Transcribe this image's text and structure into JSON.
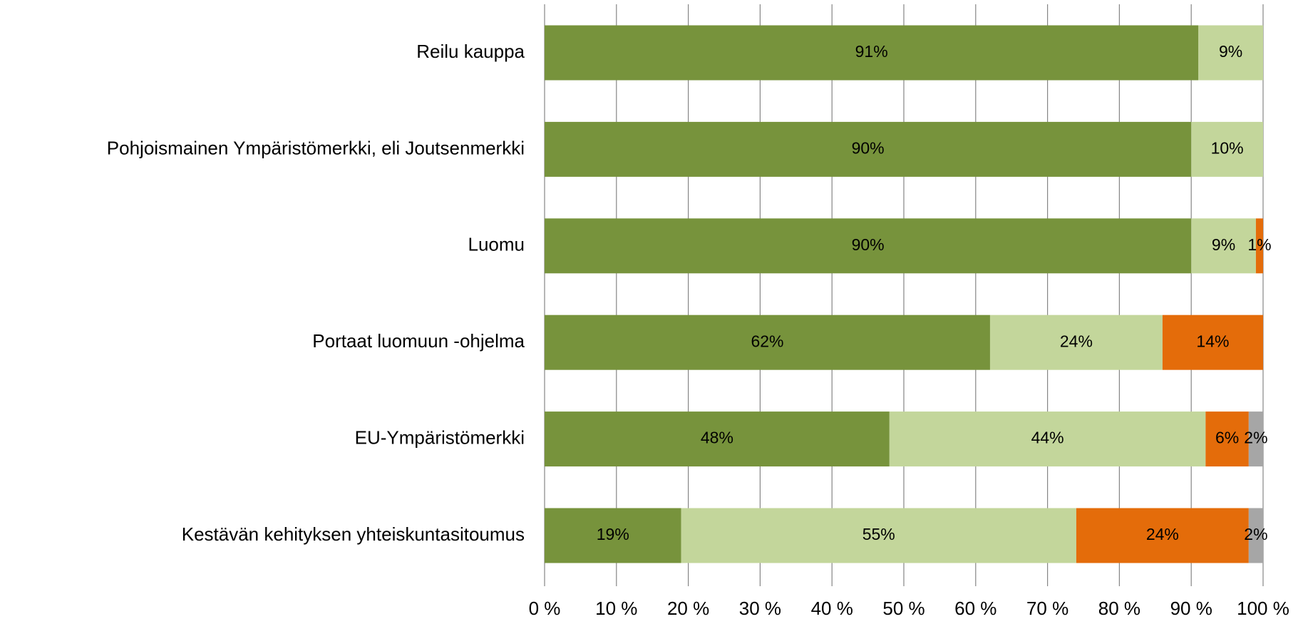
{
  "chart_data": {
    "type": "stacked_barh",
    "categories": [
      "Reilu kauppa",
      "Pohjoismainen Ympäristömerkki, eli Joutsenmerkki",
      "Luomu",
      "Portaat luomuun -ohjelma",
      "EU-Ympäristömerkki",
      "Kestävän kehityksen yhteiskuntasitoumus"
    ],
    "series": [
      {
        "color": "#77933c",
        "values": [
          91,
          90,
          90,
          62,
          48,
          19
        ],
        "value_labels": [
          "91%",
          "90%",
          "90%",
          "62%",
          "48%",
          "19%"
        ]
      },
      {
        "color": "#c3d69b",
        "values": [
          9,
          10,
          9,
          24,
          44,
          55
        ],
        "value_labels": [
          "9%",
          "10%",
          "9%",
          "24%",
          "44%",
          "55%"
        ]
      },
      {
        "color": "#e46c0a",
        "values": [
          null,
          null,
          1,
          14,
          6,
          24
        ],
        "value_labels": [
          null,
          null,
          "1%",
          "14%",
          "6%",
          "24%"
        ]
      },
      {
        "color": "#a6a6a6",
        "values": [
          null,
          null,
          null,
          null,
          2,
          2
        ],
        "value_labels": [
          null,
          null,
          null,
          null,
          "2%",
          "2%"
        ]
      }
    ],
    "xlim": [
      0,
      100
    ],
    "xticks": [
      {
        "value": 0,
        "label": "0 %"
      },
      {
        "value": 10,
        "label": "10 %"
      },
      {
        "value": 20,
        "label": "20 %"
      },
      {
        "value": 30,
        "label": "30 %"
      },
      {
        "value": 40,
        "label": "40 %"
      },
      {
        "value": 50,
        "label": "50 %"
      },
      {
        "value": 60,
        "label": "60 %"
      },
      {
        "value": 70,
        "label": "70 %"
      },
      {
        "value": 80,
        "label": "80 %"
      },
      {
        "value": 90,
        "label": "90 %"
      },
      {
        "value": 100,
        "label": "100 %"
      }
    ],
    "grid": true
  }
}
